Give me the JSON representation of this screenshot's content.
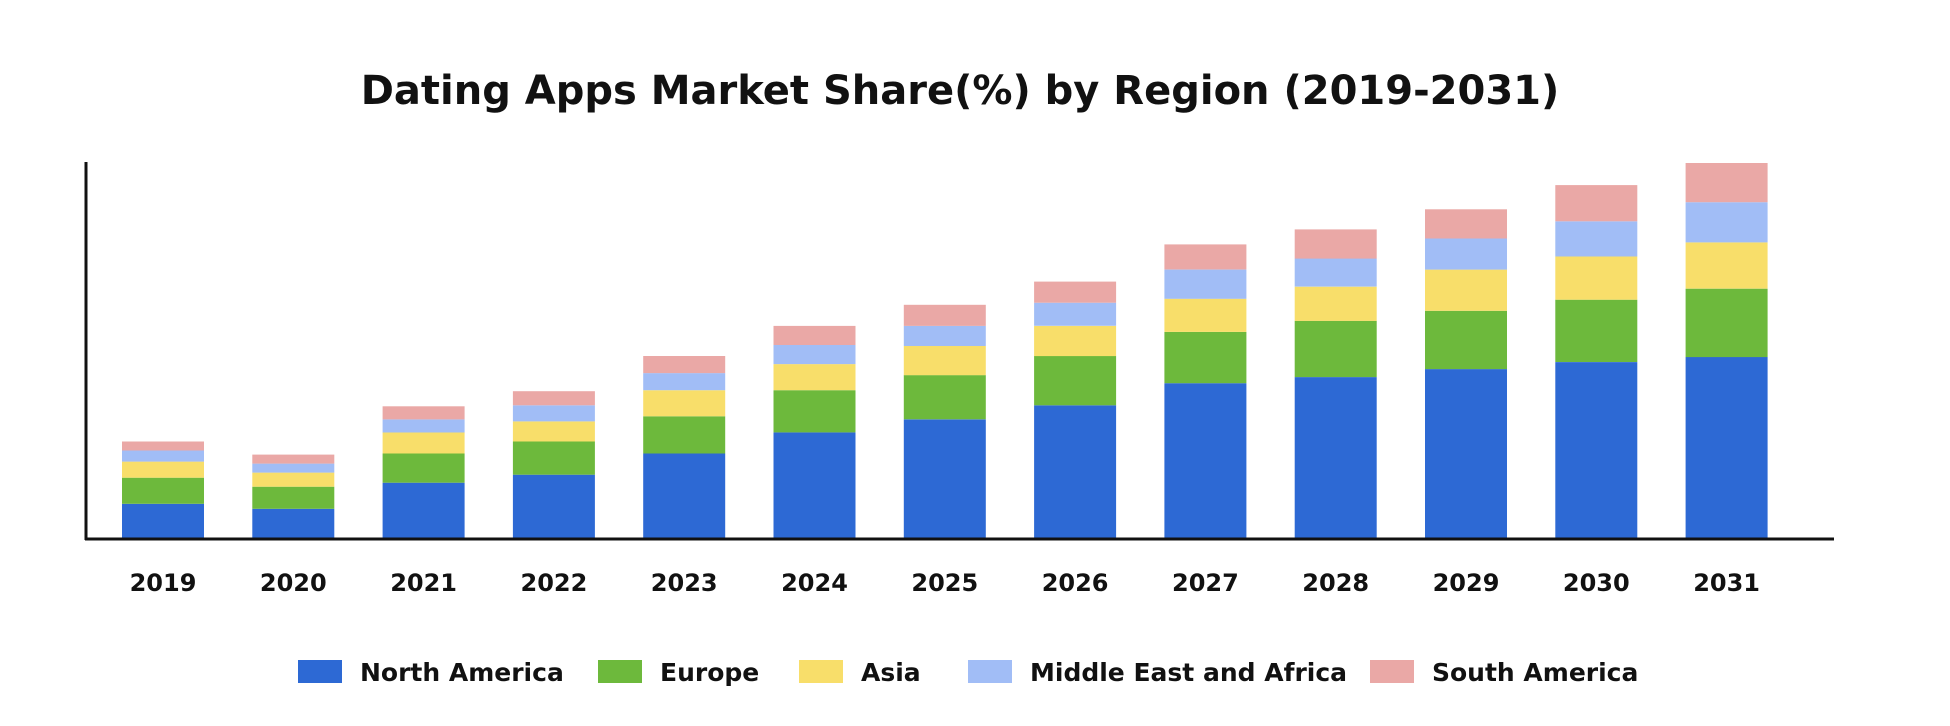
{
  "chart_data": {
    "type": "bar",
    "stacked": true,
    "title": "Dating Apps Market Share(%) by Region (2019-2031)",
    "xlabel": "",
    "ylabel": "",
    "categories": [
      "2019",
      "2020",
      "2021",
      "2022",
      "2023",
      "2024",
      "2025",
      "2026",
      "2027",
      "2028",
      "2029",
      "2030",
      "2031"
    ],
    "series": [
      {
        "name": "North America",
        "color": "#2D69D4",
        "values": [
          35,
          30,
          56,
          64,
          85,
          106,
          119,
          133,
          155,
          161,
          169,
          176,
          181
        ]
      },
      {
        "name": "Europe",
        "color": "#6DB93C",
        "values": [
          26,
          22,
          29,
          33,
          37,
          42,
          44,
          49,
          51,
          56,
          58,
          62,
          68
        ]
      },
      {
        "name": "Asia",
        "color": "#F8DE6A",
        "values": [
          16,
          14,
          21,
          20,
          26,
          26,
          29,
          30,
          33,
          34,
          41,
          43,
          46
        ]
      },
      {
        "name": "Middle East and Africa",
        "color": "#A1BDF6",
        "values": [
          11,
          9,
          13,
          16,
          17,
          19,
          20,
          23,
          29,
          28,
          31,
          35,
          40
        ]
      },
      {
        "name": "South America",
        "color": "#EAA8A6",
        "values": [
          9,
          9,
          13,
          14,
          17,
          19,
          21,
          21,
          25,
          29,
          29,
          36,
          39
        ]
      }
    ],
    "ylim": [
      0,
      375
    ],
    "grid": false,
    "legend": "bottom"
  }
}
